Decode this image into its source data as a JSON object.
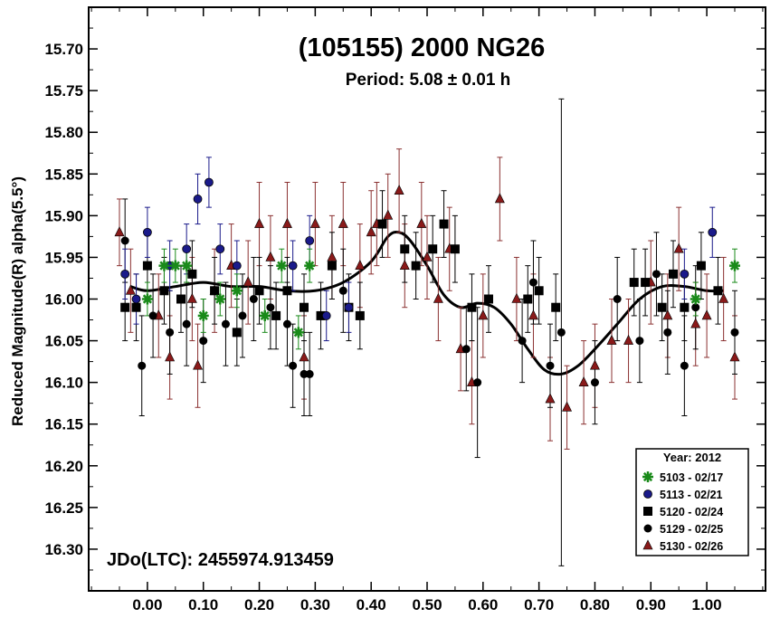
{
  "chart_data": {
    "type": "scatter",
    "title": "(105155) 2000 NG26",
    "subtitle": "Period: 5.08 ± 0.01 h",
    "ylabel": "Reduced Magnitude(R) alpha(5.5°)",
    "xlabel": "",
    "annotation": "JDo(LTC): 2455974.913459",
    "xlim": [
      -0.105,
      1.105
    ],
    "ylim": [
      16.35,
      15.65
    ],
    "y_inverted": true,
    "grid": false,
    "legend_position": "bottom-right",
    "x_tick_labels": [
      "0.00",
      "0.10",
      "0.20",
      "0.30",
      "0.40",
      "0.50",
      "0.60",
      "0.70",
      "0.80",
      "0.90",
      "1.00"
    ],
    "y_tick_labels": [
      "15.70",
      "15.75",
      "15.80",
      "15.85",
      "15.90",
      "15.95",
      "16.00",
      "16.05",
      "16.10",
      "16.15",
      "16.20",
      "16.25",
      "16.30"
    ],
    "legend": {
      "title": "Year: 2012",
      "entries": [
        "5103 - 02/17",
        "5113 - 02/21",
        "5120 - 02/24",
        "5129 - 02/25",
        "5130 - 02/26"
      ]
    },
    "series": [
      {
        "name": "5103 - 02/17",
        "marker": "asterisk",
        "color": "#1a8a1a",
        "x": [
          0.0,
          0.03,
          0.05,
          0.07,
          0.1,
          0.13,
          0.16,
          0.21,
          0.24,
          0.27,
          0.29,
          0.98,
          1.05
        ],
        "y": [
          16.0,
          15.96,
          15.96,
          15.96,
          16.02,
          16.0,
          15.99,
          16.02,
          15.96,
          16.04,
          15.96,
          16.0,
          15.96
        ],
        "err": [
          0.02,
          0.02,
          0.02,
          0.02,
          0.02,
          0.02,
          0.02,
          0.02,
          0.02,
          0.02,
          0.02,
          0.02,
          0.02
        ]
      },
      {
        "name": "5113 - 02/21",
        "marker": "circle",
        "color": "#1a1a8a",
        "x": [
          -0.04,
          -0.02,
          0.0,
          0.04,
          0.07,
          0.09,
          0.11,
          0.13,
          0.16,
          0.26,
          0.29,
          0.32,
          0.36,
          0.96,
          1.01
        ],
        "y": [
          15.97,
          16.0,
          15.92,
          15.96,
          15.94,
          15.88,
          15.86,
          15.94,
          15.96,
          15.96,
          15.93,
          16.02,
          16.01,
          15.97,
          15.92
        ],
        "err": [
          0.03,
          0.03,
          0.03,
          0.03,
          0.03,
          0.03,
          0.03,
          0.03,
          0.03,
          0.03,
          0.03,
          0.03,
          0.03,
          0.03,
          0.03
        ]
      },
      {
        "name": "5120 - 02/24",
        "marker": "square",
        "color": "#000000",
        "x": [
          -0.04,
          -0.02,
          0.0,
          0.03,
          0.06,
          0.08,
          0.12,
          0.16,
          0.2,
          0.23,
          0.25,
          0.28,
          0.31,
          0.33,
          0.36,
          0.38,
          0.42,
          0.46,
          0.48,
          0.51,
          0.53,
          0.55,
          0.58,
          0.61,
          0.68,
          0.7,
          0.73,
          0.87,
          0.89,
          0.92,
          0.94,
          0.96,
          0.99,
          1.02
        ],
        "y": [
          16.01,
          16.01,
          15.96,
          15.99,
          16.0,
          15.97,
          15.99,
          16.04,
          15.99,
          16.02,
          15.99,
          16.01,
          16.02,
          15.96,
          16.01,
          16.02,
          15.91,
          15.94,
          15.96,
          15.94,
          15.91,
          15.94,
          16.01,
          16.0,
          16.0,
          15.99,
          16.01,
          15.98,
          15.98,
          16.01,
          15.97,
          16.01,
          15.96,
          15.99
        ],
        "err": [
          0.04,
          0.04,
          0.04,
          0.04,
          0.04,
          0.04,
          0.04,
          0.04,
          0.04,
          0.04,
          0.04,
          0.04,
          0.04,
          0.04,
          0.04,
          0.04,
          0.04,
          0.04,
          0.04,
          0.04,
          0.04,
          0.04,
          0.04,
          0.04,
          0.04,
          0.04,
          0.04,
          0.04,
          0.04,
          0.04,
          0.04,
          0.04,
          0.04,
          0.04
        ]
      },
      {
        "name": "5129 - 02/25",
        "marker": "filled-circle",
        "color": "#000000",
        "x": [
          -0.04,
          -0.01,
          0.01,
          0.04,
          0.07,
          0.1,
          0.14,
          0.17,
          0.19,
          0.22,
          0.25,
          0.26,
          0.28,
          0.29,
          0.35,
          0.57,
          0.59,
          0.67,
          0.69,
          0.72,
          0.74,
          0.8,
          0.84,
          0.88,
          0.91,
          0.93,
          0.96,
          0.98,
          1.05
        ],
        "y": [
          15.93,
          16.08,
          16.02,
          16.04,
          16.03,
          16.05,
          16.03,
          16.02,
          16.0,
          16.01,
          16.03,
          16.08,
          16.09,
          16.09,
          15.99,
          16.06,
          16.1,
          16.05,
          15.98,
          16.08,
          16.04,
          16.1,
          16.0,
          16.05,
          15.97,
          16.04,
          16.08,
          16.01,
          16.04
        ],
        "err": [
          0.05,
          0.06,
          0.05,
          0.05,
          0.05,
          0.05,
          0.05,
          0.05,
          0.05,
          0.05,
          0.05,
          0.05,
          0.05,
          0.05,
          0.05,
          0.05,
          0.09,
          0.05,
          0.05,
          0.05,
          0.28,
          0.05,
          0.05,
          0.05,
          0.05,
          0.05,
          0.06,
          0.05,
          0.05
        ]
      },
      {
        "name": "5130 - 02/26",
        "marker": "triangle",
        "color": "#8a1a1a",
        "x": [
          -0.05,
          -0.03,
          0.02,
          0.04,
          0.08,
          0.09,
          0.12,
          0.15,
          0.18,
          0.2,
          0.22,
          0.25,
          0.28,
          0.3,
          0.33,
          0.35,
          0.38,
          0.4,
          0.41,
          0.43,
          0.45,
          0.46,
          0.49,
          0.5,
          0.52,
          0.54,
          0.56,
          0.58,
          0.6,
          0.63,
          0.66,
          0.69,
          0.72,
          0.75,
          0.78,
          0.8,
          0.83,
          0.86,
          0.9,
          0.93,
          0.95,
          0.98,
          1.0,
          1.03,
          1.05
        ],
        "y": [
          15.92,
          15.99,
          16.02,
          16.07,
          16.0,
          16.08,
          15.99,
          15.96,
          15.98,
          15.91,
          15.95,
          15.91,
          16.07,
          15.91,
          15.95,
          15.91,
          15.96,
          15.92,
          15.91,
          15.9,
          15.87,
          15.96,
          15.91,
          15.95,
          16.0,
          15.94,
          16.06,
          16.1,
          16.02,
          15.88,
          16.0,
          16.02,
          16.12,
          16.13,
          16.1,
          16.08,
          16.05,
          16.05,
          15.98,
          16.02,
          15.94,
          16.03,
          16.02,
          16.0,
          16.07
        ],
        "err": [
          0.04,
          0.05,
          0.05,
          0.05,
          0.05,
          0.05,
          0.05,
          0.05,
          0.05,
          0.05,
          0.05,
          0.05,
          0.05,
          0.05,
          0.05,
          0.05,
          0.05,
          0.05,
          0.05,
          0.05,
          0.05,
          0.05,
          0.05,
          0.05,
          0.05,
          0.05,
          0.05,
          0.05,
          0.05,
          0.05,
          0.05,
          0.05,
          0.05,
          0.05,
          0.05,
          0.05,
          0.05,
          0.05,
          0.05,
          0.05,
          0.05,
          0.05,
          0.05,
          0.05,
          0.05
        ]
      }
    ],
    "fit_curve": {
      "x": [
        -0.03,
        0.0,
        0.05,
        0.1,
        0.15,
        0.2,
        0.25,
        0.3,
        0.35,
        0.4,
        0.43,
        0.45,
        0.47,
        0.5,
        0.53,
        0.56,
        0.59,
        0.62,
        0.65,
        0.68,
        0.71,
        0.74,
        0.77,
        0.8,
        0.84,
        0.88,
        0.92,
        0.96,
        1.0,
        1.03
      ],
      "y": [
        15.985,
        15.99,
        15.985,
        15.98,
        15.985,
        15.985,
        15.99,
        15.99,
        15.98,
        15.955,
        15.925,
        15.92,
        15.93,
        15.96,
        15.995,
        16.01,
        16.005,
        16.01,
        16.03,
        16.06,
        16.085,
        16.09,
        16.08,
        16.06,
        16.03,
        16.0,
        15.985,
        15.985,
        15.99,
        15.99
      ]
    }
  }
}
